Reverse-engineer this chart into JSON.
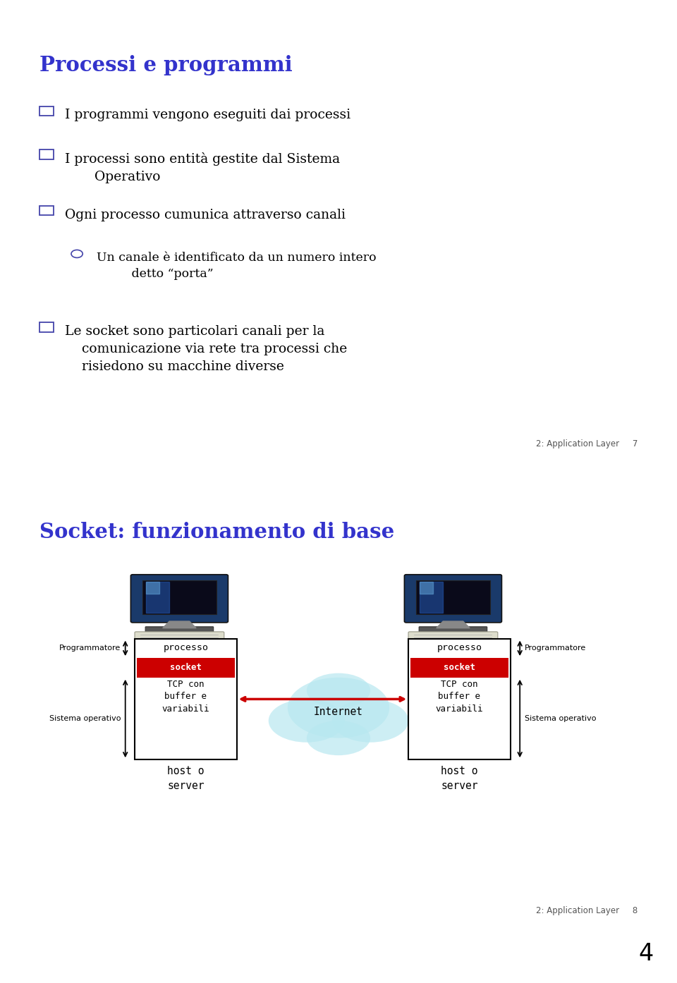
{
  "slide1_title": "Processi e programmi",
  "slide1_footer": "2: Application Layer     7",
  "slide2_title": "Socket: funzionamento di base",
  "slide2_footer": "2: Application Layer     8",
  "title_color": "#3333cc",
  "background_color": "#ffffff",
  "outer_bg": "#ffffff",
  "slide_border_color": "#aaaaaa",
  "page_num": "4",
  "bullets": [
    {
      "level": 1,
      "text": "I programmi vengono eseguiti dai processi"
    },
    {
      "level": 1,
      "text": "I processi sono entità gestite dal Sistema\n    Operativo"
    },
    {
      "level": 1,
      "text": "Ogni processo cumunica attraverso canali"
    },
    {
      "level": 2,
      "text": "Un canale è identificato da un numero intero\n      detto “porta”"
    },
    {
      "level": 1,
      "text": "Le socket sono particolari canali per la\n    comunicazione via rete tra processi che\n    risiedono su macchine diverse"
    }
  ]
}
